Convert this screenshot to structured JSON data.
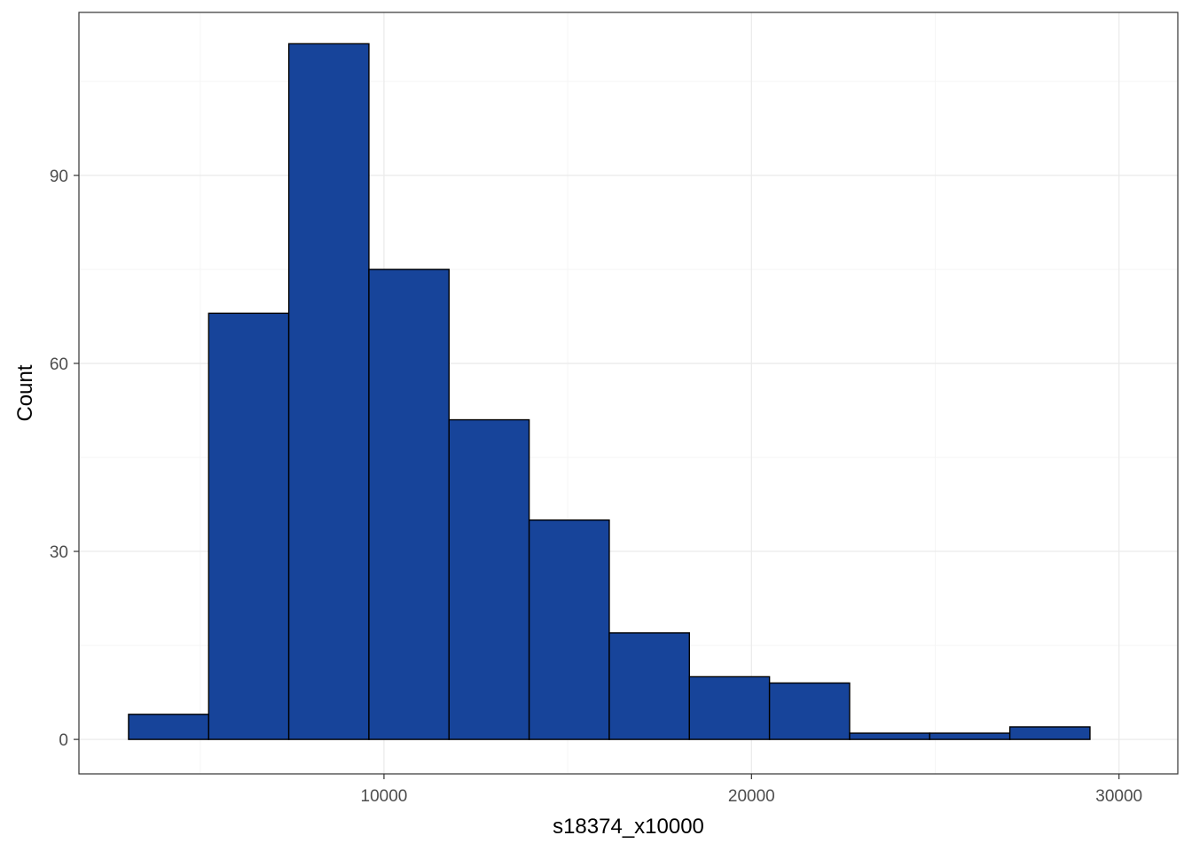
{
  "chart_data": {
    "type": "histogram",
    "xlabel": "s18374_x10000",
    "ylabel": "Count",
    "xlim": [
      1700,
      31600
    ],
    "ylim": [
      -5.5,
      116
    ],
    "x_ticks": [
      10000,
      20000,
      30000
    ],
    "x_tick_labels": [
      "10000",
      "20000",
      "30000"
    ],
    "y_ticks": [
      0,
      30,
      60,
      90
    ],
    "y_tick_labels": [
      "0",
      "30",
      "60",
      "90"
    ],
    "grid": true,
    "legend": "none",
    "bins": [
      {
        "start": 3050,
        "end": 5230,
        "count": 4
      },
      {
        "start": 5230,
        "end": 7410,
        "count": 68
      },
      {
        "start": 7410,
        "end": 9590,
        "count": 111
      },
      {
        "start": 9590,
        "end": 11770,
        "count": 75
      },
      {
        "start": 11770,
        "end": 13950,
        "count": 51
      },
      {
        "start": 13950,
        "end": 16130,
        "count": 35
      },
      {
        "start": 16130,
        "end": 18310,
        "count": 17
      },
      {
        "start": 18310,
        "end": 20490,
        "count": 10
      },
      {
        "start": 20490,
        "end": 22670,
        "count": 9
      },
      {
        "start": 22670,
        "end": 24850,
        "count": 1
      },
      {
        "start": 24850,
        "end": 27030,
        "count": 1
      },
      {
        "start": 27030,
        "end": 29210,
        "count": 2
      }
    ],
    "colors": {
      "fill": "#17449a",
      "stroke": "#000000",
      "grid_major": "#ebebeb",
      "grid_minor": "#f5f5f5",
      "panel_border": "#333333"
    }
  }
}
